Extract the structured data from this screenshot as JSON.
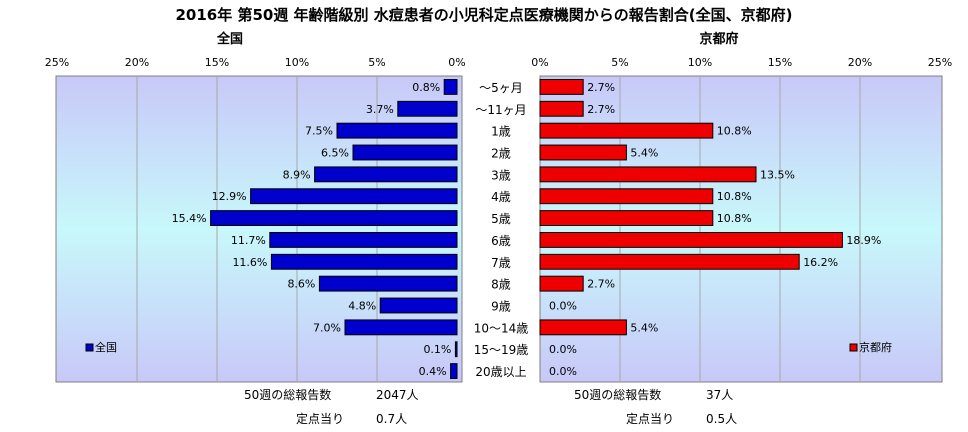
{
  "title": "2016年 第50週 年齢階級別 水痘患者の小児科定点医療機関からの報告割合(全国、京都府)",
  "colors": {
    "national": "#0000cc",
    "kyoto": "#ee0000",
    "plot_top": "#c8c8f8",
    "plot_mid": "#c8f8fb"
  },
  "chart_data": [
    {
      "type": "bar",
      "orientation": "horizontal",
      "direction": "right-to-left",
      "subtitle": "全国",
      "categories": [
        "～5ヶ月",
        "～11ヶ月",
        "1歳",
        "2歳",
        "3歳",
        "4歳",
        "5歳",
        "6歳",
        "7歳",
        "8歳",
        "9歳",
        "10～14歳",
        "15～19歳",
        "20歳以上"
      ],
      "series": [
        {
          "name": "全国",
          "values": [
            0.8,
            3.7,
            7.5,
            6.5,
            8.9,
            12.9,
            15.4,
            11.7,
            11.6,
            8.6,
            4.8,
            7.0,
            0.1,
            0.4
          ],
          "labels": [
            "0.8%",
            "3.7%",
            "7.5%",
            "6.5%",
            "8.9%",
            "12.9%",
            "15.4%",
            "11.7%",
            "11.6%",
            "8.6%",
            "4.8%",
            "7.0%",
            "0.1%",
            "0.4%"
          ]
        }
      ],
      "xlim": [
        0,
        25
      ],
      "ticks": [
        "25%",
        "20%",
        "15%",
        "10%",
        "5%",
        "0%"
      ],
      "grid": true,
      "legend": "left",
      "footer": {
        "total_label": "50週の総報告数",
        "total_value": "2047人",
        "per_label": "定点当り",
        "per_value": "0.7人"
      }
    },
    {
      "type": "bar",
      "orientation": "horizontal",
      "direction": "left-to-right",
      "subtitle": "京都府",
      "categories": [
        "～5ヶ月",
        "～11ヶ月",
        "1歳",
        "2歳",
        "3歳",
        "4歳",
        "5歳",
        "6歳",
        "7歳",
        "8歳",
        "9歳",
        "10～14歳",
        "15～19歳",
        "20歳以上"
      ],
      "series": [
        {
          "name": "京都府",
          "values": [
            2.7,
            2.7,
            10.8,
            5.4,
            13.5,
            10.8,
            10.8,
            18.9,
            16.2,
            2.7,
            0.0,
            5.4,
            0.0,
            0.0
          ],
          "labels": [
            "2.7%",
            "2.7%",
            "10.8%",
            "5.4%",
            "13.5%",
            "10.8%",
            "10.8%",
            "18.9%",
            "16.2%",
            "2.7%",
            "0.0%",
            "5.4%",
            "0.0%",
            "0.0%"
          ]
        }
      ],
      "xlim": [
        0,
        25
      ],
      "ticks": [
        "0%",
        "5%",
        "10%",
        "15%",
        "20%",
        "25%"
      ],
      "grid": true,
      "legend": "right",
      "footer": {
        "total_label": "50週の総報告数",
        "total_value": "37人",
        "per_label": "定点当り",
        "per_value": "0.5人"
      }
    }
  ]
}
